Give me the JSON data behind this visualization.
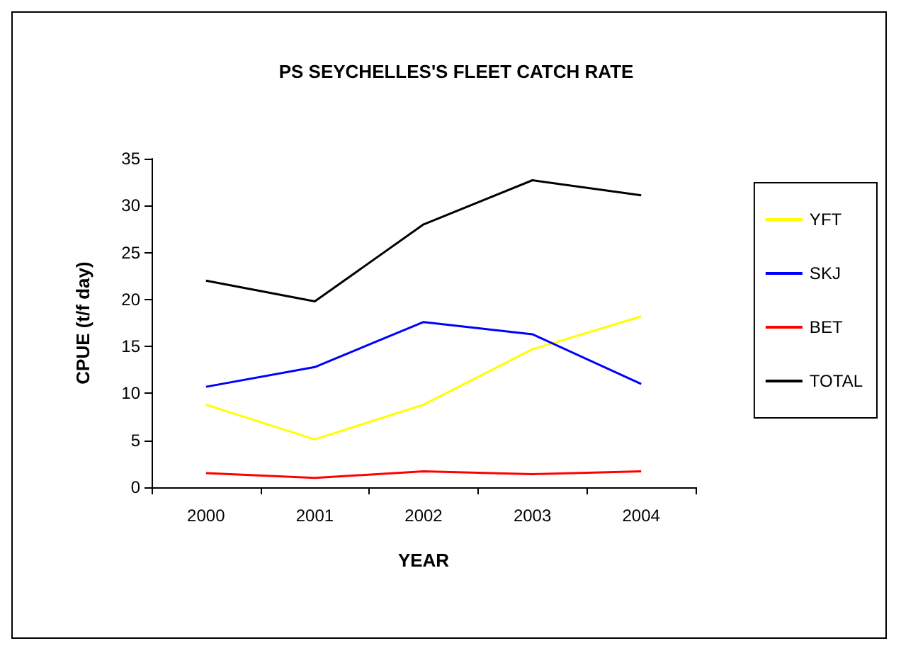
{
  "chart_data": {
    "type": "line",
    "title": "PS SEYCHELLES'S FLEET CATCH RATE",
    "xlabel": "YEAR",
    "ylabel": "CPUE (t/f day)",
    "categories": [
      "2000",
      "2001",
      "2002",
      "2003",
      "2004"
    ],
    "series": [
      {
        "name": "YFT",
        "color": "#ffff00",
        "values": [
          8.8,
          5.1,
          8.8,
          14.7,
          18.2
        ]
      },
      {
        "name": "SKJ",
        "color": "#0000ff",
        "values": [
          10.7,
          12.8,
          17.6,
          16.3,
          11
        ]
      },
      {
        "name": "BET",
        "color": "#ff0000",
        "values": [
          1.5,
          1,
          1.7,
          1.4,
          1.7
        ]
      },
      {
        "name": "TOTAL",
        "color": "#000000",
        "values": [
          22,
          19.8,
          28,
          32.7,
          31.1
        ]
      }
    ],
    "ylim": [
      0,
      35
    ],
    "yticks": [
      0,
      5,
      10,
      15,
      20,
      25,
      30,
      35
    ],
    "grid": false,
    "legend": "right",
    "marker": "none",
    "line_style": "solid"
  }
}
